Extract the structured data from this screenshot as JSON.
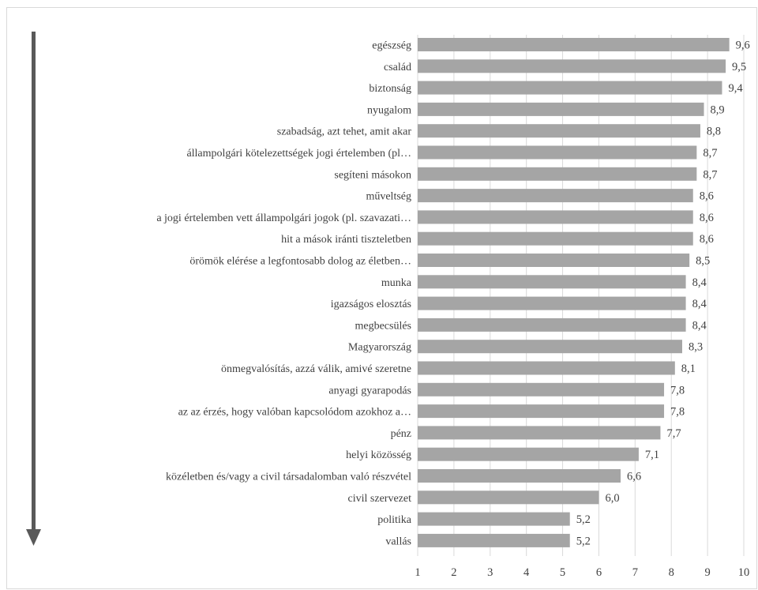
{
  "chart_data": {
    "type": "bar",
    "orientation": "horizontal",
    "categories": [
      "egészség",
      "család",
      "biztonság",
      "nyugalom",
      "szabadság, azt tehet, amit akar",
      "állampolgári kötelezettségek jogi értelemben (pl…",
      "segíteni másokon",
      "műveltség",
      "a jogi értelemben vett állampolgári jogok (pl. szavazati…",
      "hit a mások iránti tiszteletben",
      "örömök elérése a legfontosabb dolog az életben…",
      "munka",
      "igazságos elosztás",
      "megbecsülés",
      "Magyarország",
      "önmegvalósítás, azzá válik, amivé szeretne",
      "anyagi gyarapodás",
      "az az érzés, hogy valóban kapcsolódom azokhoz a…",
      "pénz",
      "helyi közösség",
      "közéletben és/vagy a civil társadalomban való részvétel",
      "civil szervezet",
      "politika",
      "vallás"
    ],
    "values": [
      9.6,
      9.5,
      9.4,
      8.9,
      8.8,
      8.7,
      8.7,
      8.6,
      8.6,
      8.6,
      8.5,
      8.4,
      8.4,
      8.4,
      8.3,
      8.1,
      7.8,
      7.8,
      7.7,
      7.1,
      6.6,
      6.0,
      5.2,
      5.2
    ],
    "value_labels": [
      "9,6",
      "9,5",
      "9,4",
      "8,9",
      "8,8",
      "8,7",
      "8,7",
      "8,6",
      "8,6",
      "8,6",
      "8,5",
      "8,4",
      "8,4",
      "8,4",
      "8,3",
      "8,1",
      "7,8",
      "7,8",
      "7,7",
      "7,1",
      "6,6",
      "6,0",
      "5,2",
      "5,2"
    ],
    "xlim": [
      1,
      10
    ],
    "xticks": [
      "1",
      "2",
      "3",
      "4",
      "5",
      "6",
      "7",
      "8",
      "9",
      "10"
    ],
    "grid": "vertical",
    "bar_color": "#a5a5a5",
    "grid_color": "#d9d9d9",
    "text_color": "#404040",
    "arrow_color": "#595959",
    "arrow": "down"
  }
}
